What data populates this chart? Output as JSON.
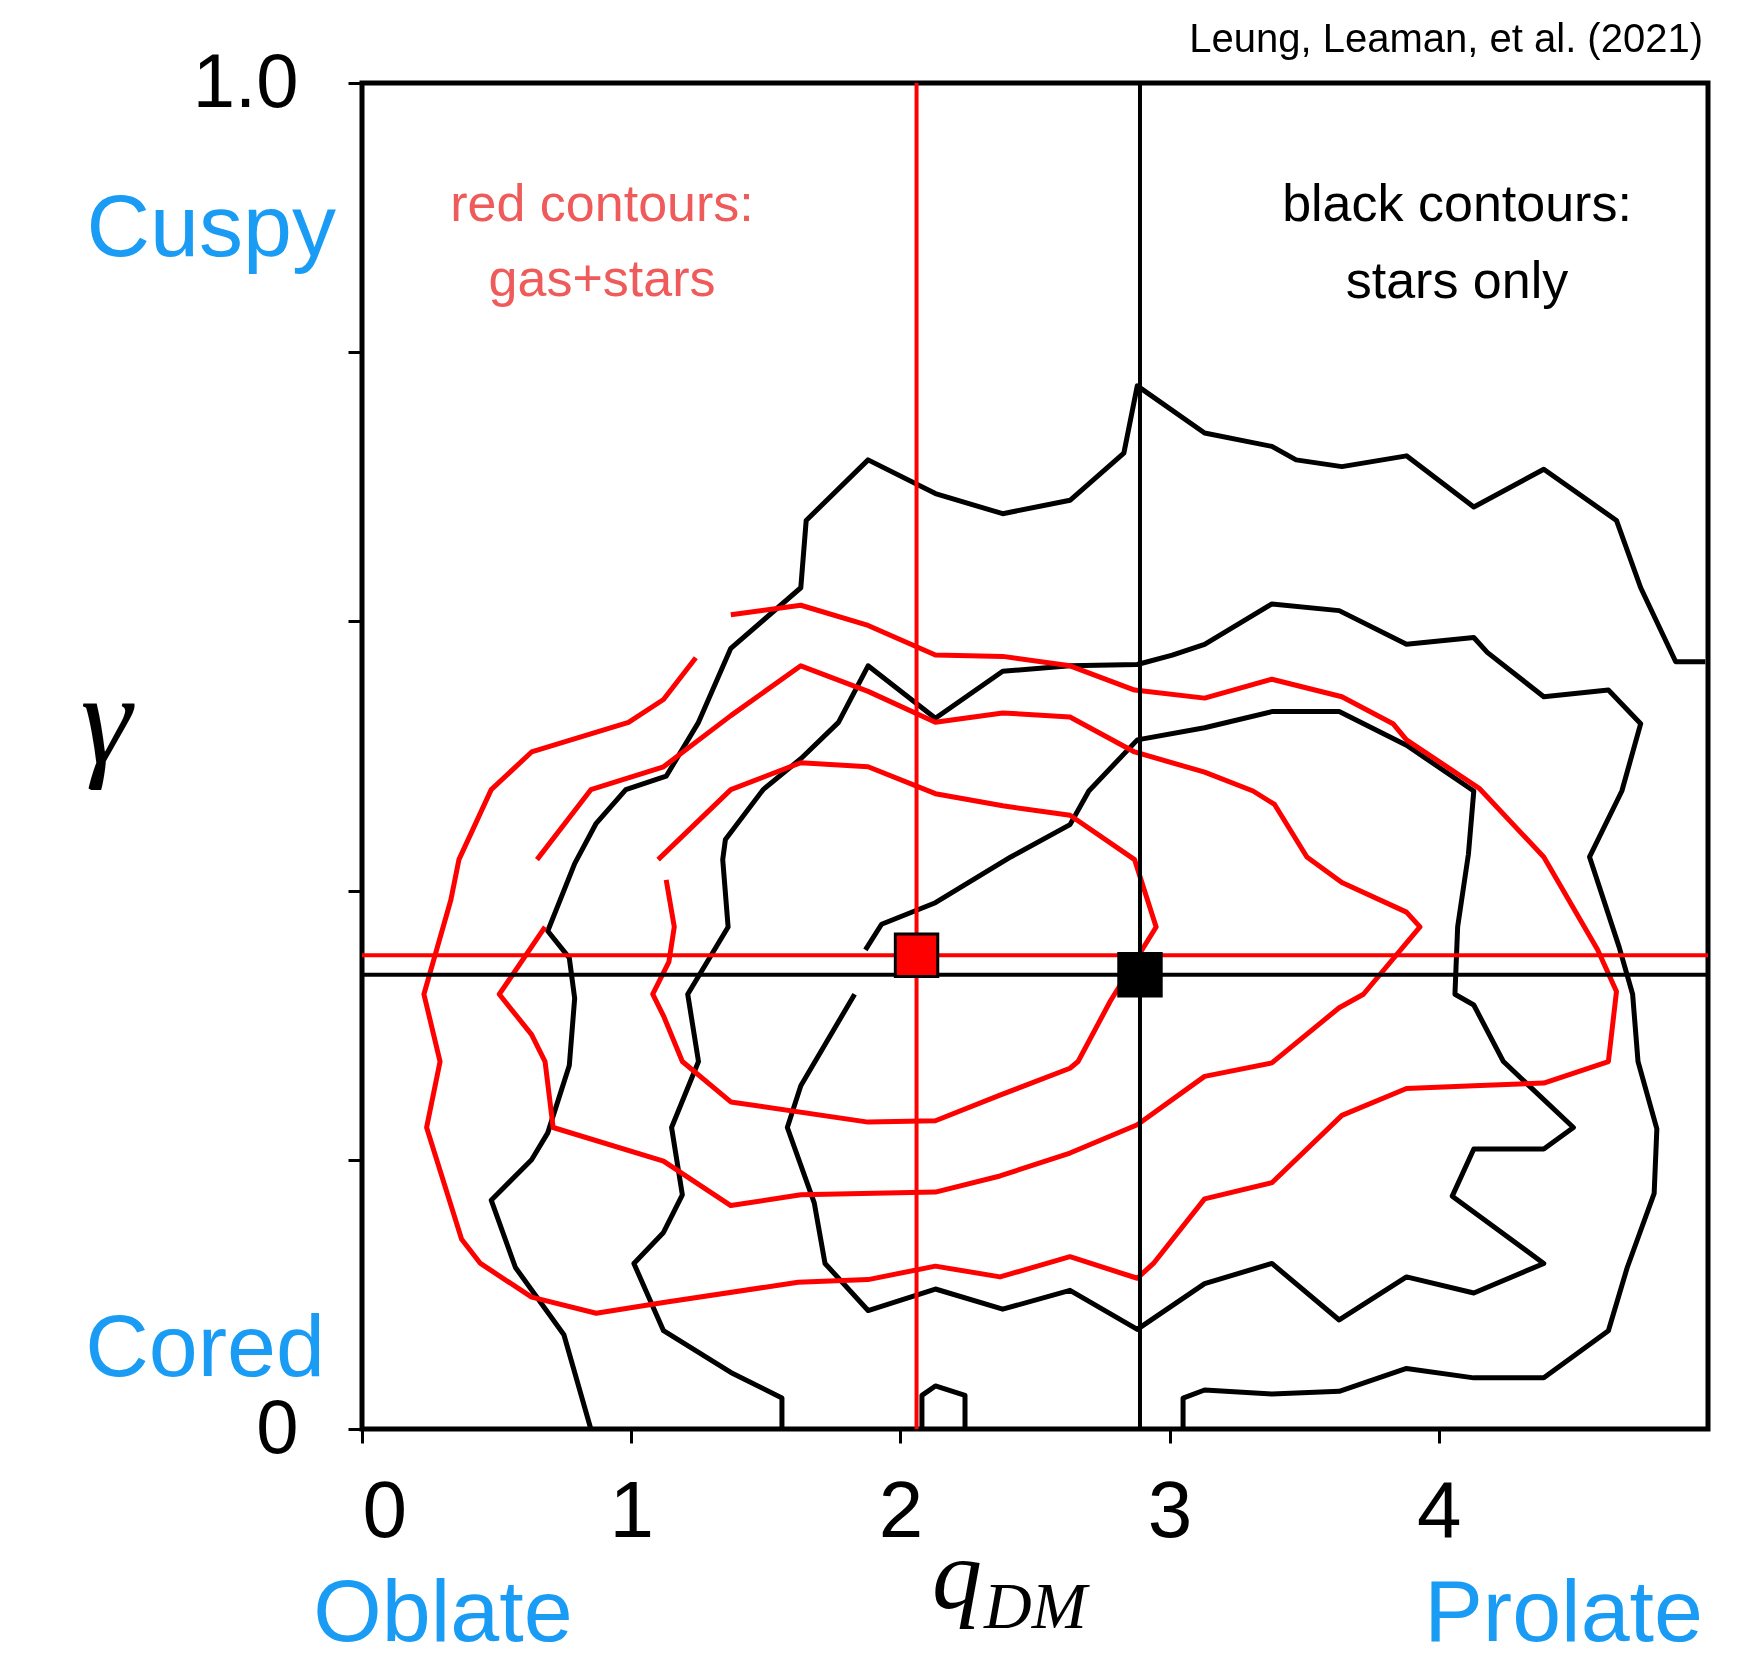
{
  "chart_data": {
    "type": "line",
    "xlabel": "q$_{DM}$",
    "ylabel": "γ",
    "xlim": [
      0,
      5
    ],
    "xticks": [
      0,
      1,
      2,
      3,
      4
    ],
    "ylim": [
      0,
      1.0
    ],
    "yticks": [
      0,
      {
        "value": 0.2,
        "label": null
      },
      {
        "value": 0.4,
        "label": null
      },
      {
        "value": 0.6,
        "label": null
      },
      {
        "value": 0.8,
        "label": null
      },
      {
        "value": 1.0,
        "label": "1.0"
      }
    ],
    "grid": false,
    "annotations": [
      "Leung, Leaman, et al. (2021)",
      "red contours:",
      "gas+stars",
      "black contours:",
      "stars only",
      "Cuspy",
      "Cored",
      "Oblate",
      "Prolate"
    ],
    "ref_lines": [
      {
        "axis": "x",
        "value": 2.06,
        "color": "#ff0000"
      },
      {
        "axis": "y",
        "value": 0.352,
        "color": "#ff0000"
      },
      {
        "axis": "x",
        "value": 2.89,
        "color": "#000000"
      },
      {
        "axis": "y",
        "value": 0.3375,
        "color": "#000000"
      }
    ],
    "series": [
      {
        "color": "#000000",
        "x": [
          0.85,
          0.75,
          0.57,
          0.48,
          0.63,
          0.69,
          0.77,
          0.79,
          0.77,
          0.69,
          0.79,
          0.87,
          0.98,
          1.13,
          1.25,
          1.37,
          1.63,
          1.65,
          1.88,
          2.13,
          2.38,
          2.63,
          2.83,
          2.88,
          3.13,
          3.38,
          3.47,
          3.64,
          3.88,
          4.13,
          4.39,
          4.66,
          4.75,
          4.88,
          4.99
        ],
        "values": [
          0.0,
          0.07,
          0.12,
          0.17,
          0.2,
          0.22,
          0.27,
          0.32,
          0.35,
          0.37,
          0.42,
          0.45,
          0.475,
          0.485,
          0.525,
          0.58,
          0.625,
          0.675,
          0.72,
          0.695,
          0.68,
          0.69,
          0.725,
          0.775,
          0.74,
          0.73,
          0.72,
          0.715,
          0.723,
          0.685,
          0.713,
          0.675,
          0.625,
          0.57,
          0.57
        ]
      },
      {
        "color": "#000000",
        "x": [
          2.08,
          2.08,
          2.13,
          2.24,
          2.24
        ],
        "values": [
          0.0,
          0.025,
          0.032,
          0.025,
          0.0
        ]
      },
      {
        "color": "#000000",
        "x": [
          1.56,
          1.56,
          1.37,
          1.12,
          1.01,
          1.12,
          1.19,
          1.15,
          1.25,
          1.21,
          1.36,
          1.34,
          1.35,
          1.49,
          1.63,
          1.77,
          1.88,
          2.13,
          2.38,
          2.63,
          2.88,
          3.01,
          3.13,
          3.38,
          3.63,
          3.88,
          4.13,
          4.18,
          4.39,
          4.63,
          4.75,
          4.68,
          4.56,
          4.67,
          4.72,
          4.74,
          4.81,
          4.8,
          4.7,
          4.63,
          4.39,
          4.13,
          3.88,
          3.63,
          3.38,
          3.13,
          3.05,
          3.05
        ],
        "values": [
          0.0,
          0.023,
          0.042,
          0.073,
          0.123,
          0.146,
          0.174,
          0.224,
          0.273,
          0.323,
          0.373,
          0.423,
          0.438,
          0.475,
          0.498,
          0.525,
          0.567,
          0.528,
          0.563,
          0.567,
          0.568,
          0.575,
          0.583,
          0.613,
          0.608,
          0.583,
          0.588,
          0.577,
          0.544,
          0.549,
          0.524,
          0.474,
          0.425,
          0.358,
          0.323,
          0.273,
          0.223,
          0.175,
          0.12,
          0.073,
          0.038,
          0.038,
          0.045,
          0.028,
          0.026,
          0.029,
          0.023,
          0.0
        ]
      },
      {
        "color": "#000000",
        "x": [
          1.87,
          1.93,
          2.13,
          2.41,
          2.63,
          2.7,
          2.88,
          3.13,
          3.38,
          3.63,
          3.88,
          4.13,
          4.11,
          4.07,
          4.06,
          4.13,
          4.24,
          4.5,
          4.39,
          4.13,
          4.05,
          4.39,
          4.13,
          3.88,
          3.63,
          3.38,
          3.13,
          2.88,
          2.63,
          2.38,
          2.13,
          1.88,
          1.72,
          1.68,
          1.58,
          1.63,
          1.83
        ],
        "values": [
          0.356,
          0.375,
          0.391,
          0.425,
          0.449,
          0.474,
          0.512,
          0.521,
          0.533,
          0.533,
          0.508,
          0.474,
          0.427,
          0.373,
          0.323,
          0.315,
          0.273,
          0.224,
          0.208,
          0.208,
          0.173,
          0.123,
          0.101,
          0.113,
          0.081,
          0.123,
          0.108,
          0.074,
          0.103,
          0.089,
          0.104,
          0.088,
          0.123,
          0.168,
          0.224,
          0.255,
          0.323
        ]
      },
      {
        "color": "#ff0000",
        "x": [
          1.37,
          1.63,
          1.88,
          2.13,
          2.38,
          2.63,
          2.87,
          3.13,
          3.38,
          3.64,
          3.83,
          3.88,
          4.15,
          4.39,
          4.59,
          4.66,
          4.63,
          4.39,
          4.13,
          3.88,
          3.64,
          3.38,
          3.13,
          2.94,
          2.88,
          2.63,
          2.37,
          2.13,
          1.88,
          1.62,
          1.12,
          0.87,
          0.63,
          0.44,
          0.37,
          0.24,
          0.29,
          0.23,
          0.33,
          0.36,
          0.48,
          0.63,
          0.99,
          1.12,
          1.24
        ],
        "values": [
          0.605,
          0.612,
          0.597,
          0.575,
          0.574,
          0.567,
          0.549,
          0.543,
          0.557,
          0.544,
          0.524,
          0.512,
          0.476,
          0.425,
          0.356,
          0.325,
          0.273,
          0.257,
          0.255,
          0.253,
          0.233,
          0.183,
          0.171,
          0.123,
          0.112,
          0.128,
          0.113,
          0.121,
          0.111,
          0.109,
          0.094,
          0.086,
          0.098,
          0.123,
          0.141,
          0.224,
          0.273,
          0.323,
          0.393,
          0.423,
          0.475,
          0.503,
          0.525,
          0.542,
          0.573
        ]
      },
      {
        "color": "#ff0000",
        "x": [
          0.65,
          0.85,
          1.12,
          1.37,
          1.63,
          1.88,
          2.13,
          2.38,
          2.63,
          2.87,
          3.13,
          3.31,
          3.39,
          3.51,
          3.64,
          3.88,
          3.93,
          3.72,
          3.63,
          3.38,
          3.13,
          2.88,
          2.63,
          2.37,
          2.13,
          1.63,
          1.37,
          1.12,
          0.71,
          0.68,
          0.63,
          0.51,
          0.68
        ],
        "values": [
          0.423,
          0.475,
          0.492,
          0.53,
          0.567,
          0.548,
          0.525,
          0.532,
          0.529,
          0.503,
          0.488,
          0.474,
          0.464,
          0.425,
          0.406,
          0.384,
          0.373,
          0.323,
          0.313,
          0.272,
          0.262,
          0.226,
          0.205,
          0.188,
          0.176,
          0.174,
          0.166,
          0.199,
          0.224,
          0.273,
          0.293,
          0.323,
          0.373
        ]
      },
      {
        "color": "#ff0000",
        "x": [
          1.1,
          1.37,
          1.63,
          1.88,
          2.13,
          2.38,
          2.63,
          2.87,
          2.95,
          2.78,
          2.66,
          2.63,
          2.37,
          2.13,
          1.88,
          1.37,
          1.19,
          1.12,
          1.08,
          1.14,
          1.16,
          1.13
        ],
        "values": [
          0.423,
          0.475,
          0.495,
          0.492,
          0.472,
          0.463,
          0.456,
          0.423,
          0.373,
          0.318,
          0.273,
          0.268,
          0.248,
          0.229,
          0.228,
          0.243,
          0.273,
          0.307,
          0.323,
          0.347,
          0.373,
          0.408
        ]
      },
      {
        "type": "scatter",
        "marker": "square",
        "color": "#ff0000",
        "x": [
          2.06
        ],
        "values": [
          0.352
        ]
      },
      {
        "type": "scatter",
        "marker": "square",
        "color": "#000000",
        "x": [
          2.89
        ],
        "values": [
          0.3375
        ]
      }
    ]
  }
}
